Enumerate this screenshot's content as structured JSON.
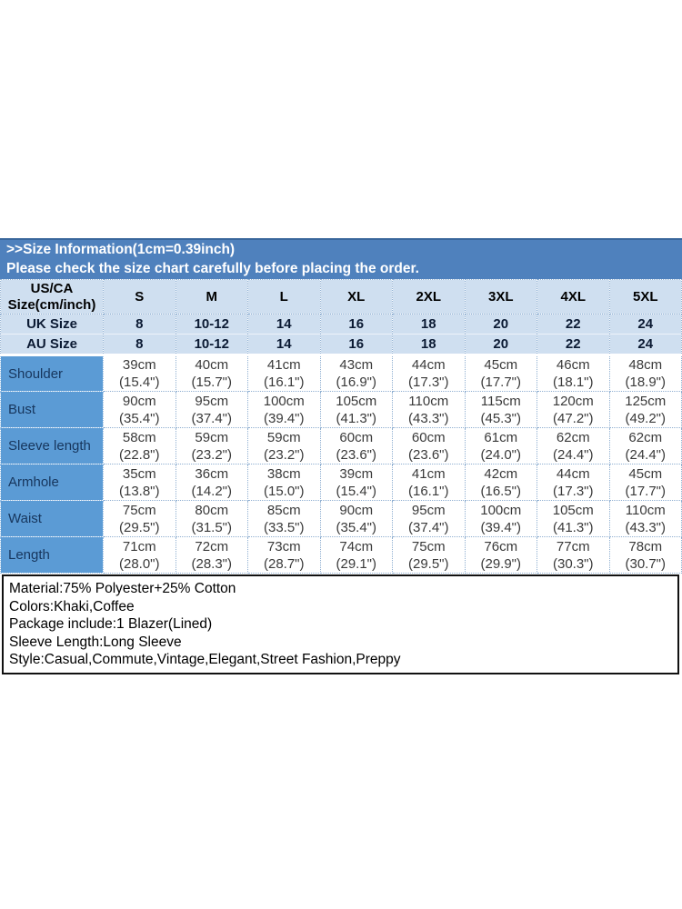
{
  "header": {
    "title": ">>Size Information(1cm=0.39inch)",
    "subtitle": "Please check the size chart carefully before placing the order."
  },
  "size_table": {
    "corner_line1": "US/CA",
    "corner_line2": "Size(cm/inch)",
    "sizes": [
      "S",
      "M",
      "L",
      "XL",
      "2XL",
      "3XL",
      "4XL",
      "5XL"
    ],
    "uk_row": {
      "label": "UK Size",
      "values": [
        "8",
        "10-12",
        "14",
        "16",
        "18",
        "20",
        "22",
        "24"
      ]
    },
    "au_row": {
      "label": "AU Size",
      "values": [
        "8",
        "10-12",
        "14",
        "16",
        "18",
        "20",
        "22",
        "24"
      ]
    },
    "measurements": [
      {
        "label": "Shoulder",
        "cm": [
          "39cm",
          "40cm",
          "41cm",
          "43cm",
          "44cm",
          "45cm",
          "46cm",
          "48cm"
        ],
        "inch": [
          "(15.4\")",
          "(15.7\")",
          "(16.1\")",
          "(16.9\")",
          "(17.3\")",
          "(17.7\")",
          "(18.1\")",
          "(18.9\")"
        ]
      },
      {
        "label": "Bust",
        "cm": [
          "90cm",
          "95cm",
          "100cm",
          "105cm",
          "110cm",
          "115cm",
          "120cm",
          "125cm"
        ],
        "inch": [
          "(35.4\")",
          "(37.4\")",
          "(39.4\")",
          "(41.3\")",
          "(43.3\")",
          "(45.3\")",
          "(47.2\")",
          "(49.2\")"
        ]
      },
      {
        "label": "Sleeve length",
        "cm": [
          "58cm",
          "59cm",
          "59cm",
          "60cm",
          "60cm",
          "61cm",
          "62cm",
          "62cm"
        ],
        "inch": [
          "(22.8\")",
          "(23.2\")",
          "(23.2\")",
          "(23.6\")",
          "(23.6\")",
          "(24.0\")",
          "(24.4\")",
          "(24.4\")"
        ]
      },
      {
        "label": "Armhole",
        "cm": [
          "35cm",
          "36cm",
          "38cm",
          "39cm",
          "41cm",
          "42cm",
          "44cm",
          "45cm"
        ],
        "inch": [
          "(13.8\")",
          "(14.2\")",
          "(15.0\")",
          "(15.4\")",
          "(16.1\")",
          "(16.5\")",
          "(17.3\")",
          "(17.7\")"
        ]
      },
      {
        "label": "Waist",
        "cm": [
          "75cm",
          "80cm",
          "85cm",
          "90cm",
          "95cm",
          "100cm",
          "105cm",
          "110cm"
        ],
        "inch": [
          "(29.5\")",
          "(31.5\")",
          "(33.5\")",
          "(35.4\")",
          "(37.4\")",
          "(39.4\")",
          "(41.3\")",
          "(43.3\")"
        ]
      },
      {
        "label": "Length",
        "cm": [
          "71cm",
          "72cm",
          "73cm",
          "74cm",
          "75cm",
          "76cm",
          "77cm",
          "78cm"
        ],
        "inch": [
          "(28.0\")",
          "(28.3\")",
          "(28.7\")",
          "(29.1\")",
          "(29.5\")",
          "(29.9\")",
          "(30.3\")",
          "(30.7\")"
        ]
      }
    ]
  },
  "details": {
    "lines": [
      "Material:75% Polyester+25% Cotton",
      "Colors:Khaki,Coffee",
      "Package include:1 Blazer(Lined)",
      "Sleeve Length:Long Sleeve",
      "Style:Casual,Commute,Vintage,Elegant,Street Fashion,Preppy"
    ]
  },
  "colors": {
    "band_blue": "#4f81bd",
    "header_light_blue": "#cfdff0",
    "label_column_blue": "#5b9bd5",
    "label_text_navy": "#17365d",
    "cell_text": "#3a3a3a",
    "grid_dotted": "#8fafd1",
    "details_border": "#111111"
  }
}
